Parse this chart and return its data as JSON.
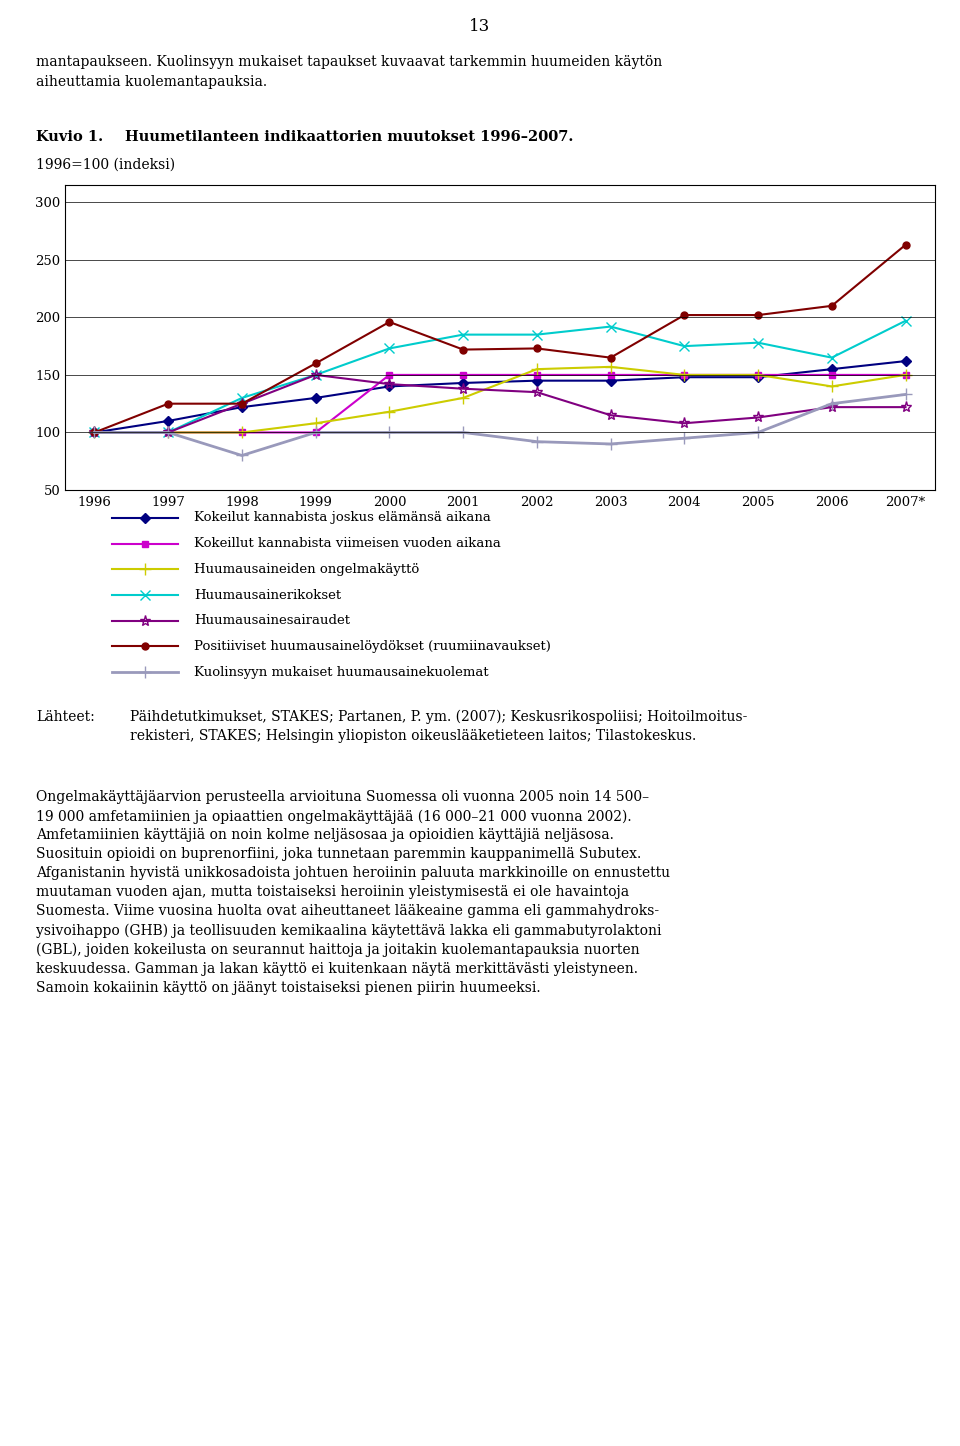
{
  "page_number": "13",
  "top_text_line1": "mantapaukseen. Kuolinsyyn mukaiset tapaukset kuvaavat tarkemmin huumeiden käytön",
  "top_text_line2": "aiheuttamia kuolemantapauksia.",
  "figure_label": "Kuvio 1.",
  "figure_title": "Huumetilanteen indikaattorien muutokset 1996–2007.",
  "ylabel": "1996=100 (indeksi)",
  "xtick_labels": [
    "1996",
    "1997",
    "1998",
    "1999",
    "2000",
    "2001",
    "2002",
    "2003",
    "2004",
    "2005",
    "2006",
    "2007*"
  ],
  "yticks": [
    50,
    100,
    150,
    200,
    250,
    300
  ],
  "ylim": [
    50,
    315
  ],
  "series": [
    {
      "label": "Kokeilut kannabista joskus elämänsä aikana",
      "color": "#000080",
      "marker": "D",
      "markersize": 5,
      "linewidth": 1.5,
      "data": [
        100,
        110,
        122,
        130,
        140,
        143,
        145,
        145,
        148,
        148,
        155,
        162
      ]
    },
    {
      "label": "Kokeillut kannabista viimeisen vuoden aikana",
      "color": "#cc00cc",
      "marker": "s",
      "markersize": 5,
      "linewidth": 1.5,
      "data": [
        100,
        100,
        100,
        100,
        150,
        150,
        150,
        150,
        150,
        150,
        150,
        150
      ]
    },
    {
      "label": "Huumausaineiden ongelmakäyttö",
      "color": "#cccc00",
      "marker": "+",
      "markersize": 8,
      "linewidth": 1.5,
      "data": [
        100,
        100,
        100,
        108,
        118,
        130,
        155,
        157,
        150,
        150,
        140,
        150
      ]
    },
    {
      "label": "Huumausainerikokset",
      "color": "#00cccc",
      "marker": "x",
      "markersize": 7,
      "linewidth": 1.5,
      "data": [
        100,
        100,
        130,
        150,
        173,
        185,
        185,
        192,
        175,
        178,
        165,
        197
      ]
    },
    {
      "label": "Huumausainesairaudet",
      "color": "#800080",
      "marker": "*",
      "markersize": 8,
      "linewidth": 1.5,
      "data": [
        100,
        100,
        125,
        150,
        142,
        138,
        135,
        115,
        108,
        113,
        122,
        122
      ]
    },
    {
      "label": "Positiiviset huumausainelöydökset (ruumiinavaukset)",
      "color": "#800000",
      "marker": "o",
      "markersize": 5,
      "linewidth": 1.5,
      "data": [
        100,
        125,
        125,
        160,
        196,
        172,
        173,
        165,
        202,
        202,
        210,
        263
      ]
    },
    {
      "label": "Kuolinsyyn mukaiset huumausainekuolemat",
      "color": "#9999bb",
      "marker": "+",
      "markersize": 8,
      "linewidth": 2.0,
      "data": [
        100,
        100,
        80,
        100,
        100,
        100,
        92,
        90,
        95,
        100,
        125,
        133
      ]
    }
  ],
  "source_label": "Lähteet:",
  "source_body": "Päihdetutkimukset, STAKES; Partanen, P. ym. (2007); Keskusrikospoliisi; Hoitoilmoitus-\nrekisteri, STAKES; Helsingin yliopiston oikeuslääketieteen laitos; Tilastokeskus.",
  "body_text": "Ongelmakäyttäjäarvion perusteella arvioituna Suomessa oli vuonna 2005 noin 14 500–\n19 000 amfetamiinien ja opiaattien ongelmakäyttäjää (16 000–21 000 vuonna 2002).\nAmfetamiinien käyttäjiä on noin kolme neljäsosaa ja opioidien käyttäjiä neljäsosa.\nSuosituin opioidi on buprenorfiini, joka tunnetaan paremmin kauppanimellä Subutex.\nAfganistanin hyvistä unikkosadoista johtuen heroiinin paluuta markkinoille on ennustettu\nmuutaman vuoden ajan, mutta toistaiseksi heroiinin yleistymisestä ei ole havaintoja\nSuomesta. Viime vuosina huolta ovat aiheuttaneet lääkeaine gamma eli gammahydroks-\nysivoihappo (GHB) ja teollisuuden kemikaalina käytettävä lakka eli gammabutyrolaktoni\n(GBL), joiden kokeilusta on seurannut haittoja ja joitakin kuolemantapauksia nuorten\nkeskuudessa. Gamman ja lakan käyttö ei kuitenkaan näytä merkittävästi yleistyneen.\nSamoin kokaiinin käyttö on jäänyt toistaiseksi pienen piirin huumeeksi."
}
